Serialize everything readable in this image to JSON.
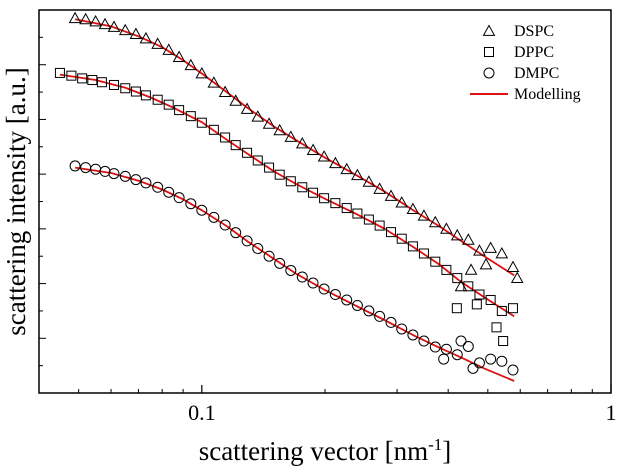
{
  "chart_data": {
    "type": "scatter",
    "title": "",
    "xlabel": {
      "text": "scattering vector [nm",
      "sup": "-1",
      "suffix": "]"
    },
    "ylabel": "scattering intensity [a.u.]",
    "x_scale": "log",
    "xlim": [
      0.04,
      1.0
    ],
    "ylim": [
      0,
      7
    ],
    "x_ticks": [
      {
        "value": 0.1,
        "label": "0.1"
      },
      {
        "value": 1,
        "label": "1"
      }
    ],
    "y_tick_labels": false,
    "legend": {
      "position": "top-right"
    },
    "series": [
      {
        "name": "DSPC",
        "marker": "triangle",
        "points": [
          [
            0.049,
            6.85
          ],
          [
            0.052,
            6.83
          ],
          [
            0.055,
            6.79
          ],
          [
            0.058,
            6.74
          ],
          [
            0.061,
            6.69
          ],
          [
            0.065,
            6.63
          ],
          [
            0.069,
            6.56
          ],
          [
            0.073,
            6.48
          ],
          [
            0.078,
            6.38
          ],
          [
            0.083,
            6.27
          ],
          [
            0.088,
            6.14
          ],
          [
            0.094,
            5.99
          ],
          [
            0.1,
            5.84
          ],
          [
            0.107,
            5.67
          ],
          [
            0.114,
            5.5
          ],
          [
            0.121,
            5.34
          ],
          [
            0.129,
            5.19
          ],
          [
            0.137,
            5.05
          ],
          [
            0.146,
            4.92
          ],
          [
            0.155,
            4.8
          ],
          [
            0.165,
            4.68
          ],
          [
            0.176,
            4.56
          ],
          [
            0.187,
            4.44
          ],
          [
            0.199,
            4.32
          ],
          [
            0.212,
            4.2
          ],
          [
            0.226,
            4.09
          ],
          [
            0.24,
            3.98
          ],
          [
            0.256,
            3.86
          ],
          [
            0.272,
            3.73
          ],
          [
            0.29,
            3.6
          ],
          [
            0.308,
            3.48
          ],
          [
            0.328,
            3.36
          ],
          [
            0.349,
            3.24
          ],
          [
            0.372,
            3.12
          ],
          [
            0.396,
            3.0
          ],
          [
            0.421,
            2.88
          ],
          [
            0.448,
            2.8
          ],
          [
            0.477,
            2.6
          ],
          [
            0.508,
            2.65
          ],
          [
            0.541,
            2.55
          ],
          [
            0.576,
            2.3
          ],
          [
            0.455,
            2.25
          ],
          [
            0.495,
            2.35
          ],
          [
            0.43,
            1.95
          ],
          [
            0.59,
            2.1
          ]
        ],
        "color": "#000000"
      },
      {
        "name": "DPPC",
        "marker": "square",
        "points": [
          [
            0.045,
            5.85
          ],
          [
            0.048,
            5.8
          ],
          [
            0.051,
            5.75
          ],
          [
            0.054,
            5.72
          ],
          [
            0.057,
            5.68
          ],
          [
            0.061,
            5.63
          ],
          [
            0.065,
            5.57
          ],
          [
            0.069,
            5.51
          ],
          [
            0.073,
            5.44
          ],
          [
            0.078,
            5.36
          ],
          [
            0.083,
            5.27
          ],
          [
            0.088,
            5.17
          ],
          [
            0.094,
            5.06
          ],
          [
            0.1,
            4.94
          ],
          [
            0.107,
            4.81
          ],
          [
            0.114,
            4.67
          ],
          [
            0.121,
            4.53
          ],
          [
            0.129,
            4.39
          ],
          [
            0.137,
            4.25
          ],
          [
            0.146,
            4.12
          ],
          [
            0.155,
            3.99
          ],
          [
            0.165,
            3.87
          ],
          [
            0.176,
            3.76
          ],
          [
            0.187,
            3.66
          ],
          [
            0.199,
            3.56
          ],
          [
            0.212,
            3.47
          ],
          [
            0.226,
            3.38
          ],
          [
            0.24,
            3.28
          ],
          [
            0.256,
            3.17
          ],
          [
            0.272,
            3.06
          ],
          [
            0.29,
            2.94
          ],
          [
            0.308,
            2.82
          ],
          [
            0.328,
            2.68
          ],
          [
            0.349,
            2.55
          ],
          [
            0.372,
            2.4
          ],
          [
            0.396,
            2.25
          ],
          [
            0.421,
            2.1
          ],
          [
            0.448,
            1.95
          ],
          [
            0.477,
            1.8
          ],
          [
            0.508,
            1.7
          ],
          [
            0.541,
            1.5
          ],
          [
            0.576,
            1.55
          ],
          [
            0.47,
            1.62
          ],
          [
            0.525,
            1.2
          ],
          [
            0.545,
            0.95
          ],
          [
            0.42,
            1.55
          ]
        ],
        "color": "#000000"
      },
      {
        "name": "DMPC",
        "marker": "circle",
        "points": [
          [
            0.049,
            4.15
          ],
          [
            0.052,
            4.12
          ],
          [
            0.055,
            4.09
          ],
          [
            0.058,
            4.05
          ],
          [
            0.061,
            4.01
          ],
          [
            0.065,
            3.96
          ],
          [
            0.069,
            3.9
          ],
          [
            0.073,
            3.84
          ],
          [
            0.078,
            3.76
          ],
          [
            0.083,
            3.67
          ],
          [
            0.088,
            3.57
          ],
          [
            0.094,
            3.46
          ],
          [
            0.1,
            3.34
          ],
          [
            0.107,
            3.21
          ],
          [
            0.114,
            3.07
          ],
          [
            0.121,
            2.93
          ],
          [
            0.129,
            2.78
          ],
          [
            0.137,
            2.64
          ],
          [
            0.146,
            2.5
          ],
          [
            0.155,
            2.37
          ],
          [
            0.165,
            2.24
          ],
          [
            0.176,
            2.12
          ],
          [
            0.187,
            2.01
          ],
          [
            0.199,
            1.9
          ],
          [
            0.212,
            1.8
          ],
          [
            0.226,
            1.7
          ],
          [
            0.24,
            1.6
          ],
          [
            0.256,
            1.5
          ],
          [
            0.272,
            1.4
          ],
          [
            0.29,
            1.29
          ],
          [
            0.308,
            1.17
          ],
          [
            0.328,
            1.06
          ],
          [
            0.349,
            0.95
          ],
          [
            0.372,
            0.84
          ],
          [
            0.396,
            0.8
          ],
          [
            0.421,
            0.7
          ],
          [
            0.448,
            0.85
          ],
          [
            0.477,
            0.55
          ],
          [
            0.508,
            0.62
          ],
          [
            0.541,
            0.58
          ],
          [
            0.576,
            0.42
          ],
          [
            0.39,
            0.62
          ],
          [
            0.43,
            0.95
          ],
          [
            0.46,
            0.45
          ]
        ],
        "color": "#000000"
      },
      {
        "name": "Modelling",
        "marker": "line",
        "color": "#dd1111",
        "lines": [
          [
            [
              0.049,
              6.83
            ],
            [
              0.06,
              6.7
            ],
            [
              0.07,
              6.52
            ],
            [
              0.08,
              6.32
            ],
            [
              0.09,
              6.08
            ],
            [
              0.1,
              5.84
            ],
            [
              0.115,
              5.5
            ],
            [
              0.13,
              5.2
            ],
            [
              0.15,
              4.87
            ],
            [
              0.17,
              4.62
            ],
            [
              0.2,
              4.3
            ],
            [
              0.24,
              3.97
            ],
            [
              0.28,
              3.68
            ],
            [
              0.33,
              3.33
            ],
            [
              0.38,
              3.05
            ],
            [
              0.43,
              2.78
            ],
            [
              0.49,
              2.5
            ],
            [
              0.58,
              2.15
            ]
          ],
          [
            [
              0.045,
              5.82
            ],
            [
              0.055,
              5.72
            ],
            [
              0.065,
              5.58
            ],
            [
              0.075,
              5.4
            ],
            [
              0.085,
              5.22
            ],
            [
              0.1,
              4.95
            ],
            [
              0.115,
              4.63
            ],
            [
              0.13,
              4.36
            ],
            [
              0.15,
              4.05
            ],
            [
              0.17,
              3.82
            ],
            [
              0.2,
              3.55
            ],
            [
              0.24,
              3.26
            ],
            [
              0.28,
              3.0
            ],
            [
              0.33,
              2.66
            ],
            [
              0.38,
              2.35
            ],
            [
              0.43,
              2.03
            ],
            [
              0.49,
              1.75
            ],
            [
              0.58,
              1.4
            ]
          ],
          [
            [
              0.049,
              4.12
            ],
            [
              0.06,
              4.02
            ],
            [
              0.07,
              3.88
            ],
            [
              0.08,
              3.72
            ],
            [
              0.09,
              3.54
            ],
            [
              0.1,
              3.34
            ],
            [
              0.115,
              3.05
            ],
            [
              0.13,
              2.76
            ],
            [
              0.15,
              2.45
            ],
            [
              0.17,
              2.18
            ],
            [
              0.2,
              1.88
            ],
            [
              0.24,
              1.58
            ],
            [
              0.28,
              1.33
            ],
            [
              0.33,
              1.05
            ],
            [
              0.38,
              0.83
            ],
            [
              0.43,
              0.65
            ],
            [
              0.49,
              0.45
            ],
            [
              0.58,
              0.22
            ]
          ]
        ]
      }
    ]
  }
}
